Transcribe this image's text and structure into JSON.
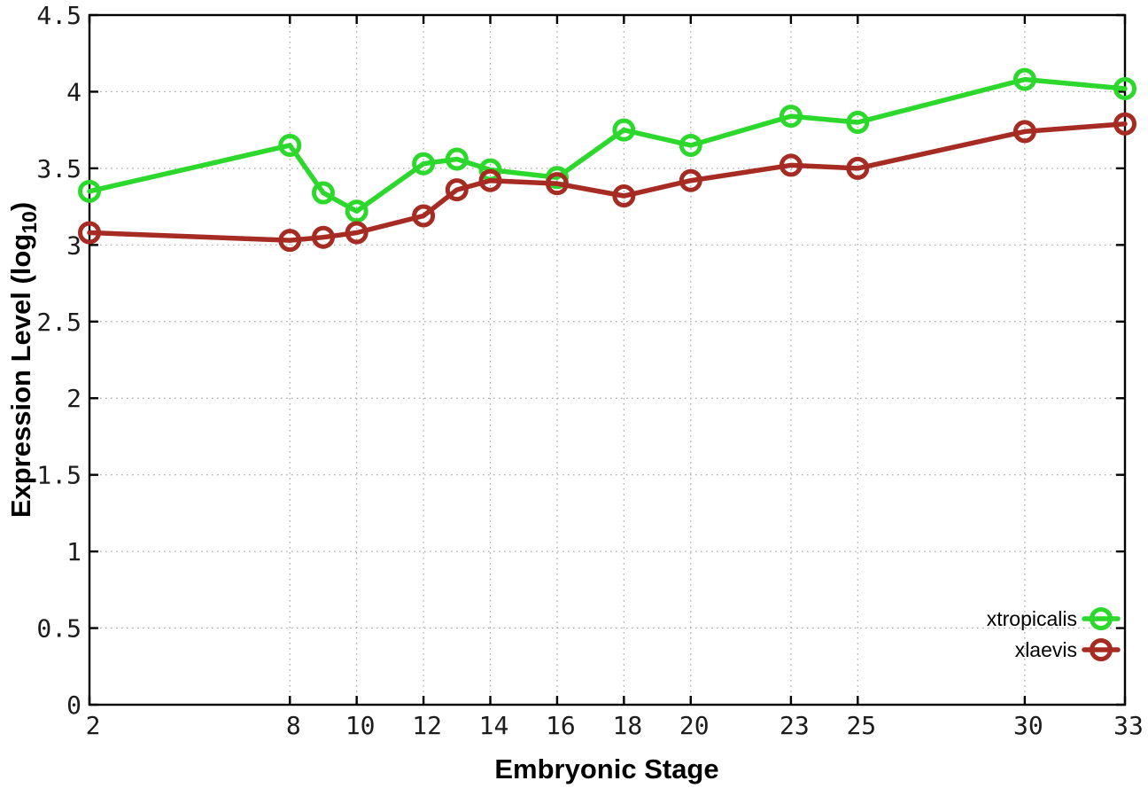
{
  "chart_data": {
    "type": "line",
    "title": "",
    "xlabel": "Embryonic Stage",
    "ylabel": "Expression Level (log10)",
    "ylabel_parts": {
      "pre": "Expression Level (log",
      "sub": "10",
      "post": ")"
    },
    "x": [
      2,
      8,
      9,
      10,
      12,
      13,
      14,
      16,
      18,
      20,
      23,
      25,
      30,
      33
    ],
    "series": [
      {
        "name": "xtropicalis",
        "color": "#2bd82b",
        "marker": "open-circle",
        "values": [
          3.35,
          3.65,
          3.34,
          3.22,
          3.53,
          3.56,
          3.49,
          3.44,
          3.75,
          3.65,
          3.84,
          3.8,
          4.08,
          4.02
        ]
      },
      {
        "name": "xlaevis",
        "color": "#a62b22",
        "marker": "open-circle",
        "values": [
          3.08,
          3.03,
          3.05,
          3.08,
          3.19,
          3.36,
          3.42,
          3.4,
          3.32,
          3.42,
          3.52,
          3.5,
          3.74,
          3.79
        ]
      }
    ],
    "xlim": [
      2,
      33
    ],
    "ylim": [
      0,
      4.5
    ],
    "xticks": [
      2,
      8,
      10,
      12,
      14,
      16,
      18,
      20,
      23,
      25,
      30,
      33
    ],
    "xtick_labels": [
      "2",
      "8",
      "10",
      "12",
      "14",
      "16",
      "18",
      "20",
      "23",
      "25",
      "30",
      "33"
    ],
    "yticks": [
      0,
      0.5,
      1,
      1.5,
      2,
      2.5,
      3,
      3.5,
      4,
      4.5
    ],
    "ytick_labels": [
      "0",
      "0.5",
      "1",
      "1.5",
      "2",
      "2.5",
      "3",
      "3.5",
      "4",
      "4.5"
    ],
    "grid": "dotted",
    "legend_position": "bottom-right"
  },
  "colors": {
    "background": "#ffffff",
    "border": "#000000",
    "grid": "#a8a8a8",
    "tick_label": "#1c1c1c",
    "series_xtropicalis": "#2bd82b",
    "series_xlaevis": "#a62b22"
  }
}
